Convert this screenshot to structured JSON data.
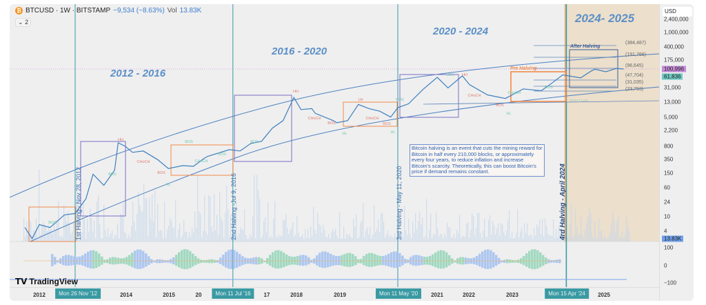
{
  "header": {
    "symbol": "BTCUSD · 1W · BITSTAMP",
    "change": "−9,534 (−8.63%)",
    "vol_label": "Vol",
    "vol_value": "13.83K",
    "indicator_count": "2",
    "coin_icon": "bitcoin-icon"
  },
  "colors": {
    "price_line": "#3d7fbf",
    "halving_line": "#3a9aa3",
    "era_text": "#5b8fc7",
    "purple_box": "#7b6fc4",
    "orange_box": "#f0894a",
    "highlight_zone": "#ecdfcc",
    "last_price_badge": "#c58ad8",
    "ma_badge": "#6fc7c0",
    "volume_badge": "#6f9fe8"
  },
  "chart_data": {
    "type": "line",
    "title": "",
    "yscale": "log",
    "ylim": [
      1.5,
      2400000
    ],
    "xlim": [
      "2011-08",
      "2025-12"
    ],
    "price_ticks": [
      "2,400,000",
      "1,000,000",
      "400,000",
      "175,000",
      "31,000",
      "13,000",
      "5,000",
      "2,200",
      "800",
      "350",
      "150",
      "60",
      "24",
      "10",
      "4"
    ],
    "price_tick_values": [
      2400000,
      1000000,
      400000,
      175000,
      31000,
      13000,
      5000,
      2200,
      800,
      350,
      150,
      60,
      24,
      10,
      4
    ],
    "x_ticks": [
      "2012",
      "2014",
      "2015",
      "20",
      "17",
      "2018",
      "2019",
      "2021",
      "2022",
      "2023",
      "2025"
    ],
    "series": [
      {
        "points": [
          [
            "2011-09",
            5
          ],
          [
            "2011-11",
            2.5
          ],
          [
            "2012-01",
            6
          ],
          [
            "2012-04",
            5
          ],
          [
            "2012-08",
            11
          ],
          [
            "2012-11",
            12
          ],
          [
            "2013-02",
            30
          ],
          [
            "2013-04",
            140
          ],
          [
            "2013-07",
            70
          ],
          [
            "2013-10",
            180
          ],
          [
            "2013-11",
            1000
          ],
          [
            "2014-01",
            800
          ],
          [
            "2014-03",
            550
          ],
          [
            "2014-06",
            600
          ],
          [
            "2014-10",
            350
          ],
          [
            "2015-01",
            200
          ],
          [
            "2015-05",
            240
          ],
          [
            "2015-08",
            230
          ],
          [
            "2015-11",
            380
          ],
          [
            "2015-12",
            430
          ],
          [
            "2016-06",
            650
          ],
          [
            "2016-09",
            600
          ],
          [
            "2016-12",
            960
          ],
          [
            "2017-03",
            1100
          ],
          [
            "2017-06",
            2500
          ],
          [
            "2017-09",
            4000
          ],
          [
            "2017-12",
            17000
          ],
          [
            "2018-02",
            8000
          ],
          [
            "2018-05",
            8500
          ],
          [
            "2018-06",
            6300
          ],
          [
            "2018-11",
            4000
          ],
          [
            "2018-12",
            3500
          ],
          [
            "2019-03",
            4000
          ],
          [
            "2019-06",
            11000
          ],
          [
            "2019-09",
            8500
          ],
          [
            "2019-12",
            7200
          ],
          [
            "2020-03",
            5000
          ],
          [
            "2020-05",
            9000
          ],
          [
            "2020-08",
            11500
          ],
          [
            "2020-12",
            28000
          ],
          [
            "2021-04",
            60000
          ],
          [
            "2021-07",
            31000
          ],
          [
            "2021-11",
            66000
          ],
          [
            "2022-01",
            38000
          ],
          [
            "2022-06",
            20000
          ],
          [
            "2022-11",
            16000
          ],
          [
            "2023-04",
            29000
          ],
          [
            "2023-09",
            26000
          ],
          [
            "2023-12",
            42000
          ],
          [
            "2024-03",
            70000
          ],
          [
            "2024-08",
            58000
          ],
          [
            "2024-11",
            90000
          ],
          [
            "2024-12",
            100000
          ],
          [
            "2025-03",
            85000
          ],
          [
            "2025-06",
            105000
          ],
          [
            "2025-08",
            100996
          ]
        ]
      }
    ],
    "last_price": "100,996",
    "ma_value": "61,836",
    "volume": "13.83K",
    "oscillator_ticks": [
      "100",
      "0",
      "−100"
    ],
    "levels": [
      "(384,487)",
      "(191,766)",
      "(96,645)",
      "(47,704)",
      "(31,035)",
      "(23,793)"
    ]
  },
  "eras": [
    "2012 - 2016",
    "2016 - 2020",
    "2020 - 2024",
    "2024- 2025"
  ],
  "halvings": [
    {
      "label": "1st Halving - Nov 28, 2012",
      "date_badge": "Mon 26 Nov '12"
    },
    {
      "label": "2nd Halving -Jul 9, 2016",
      "date_badge": "Mon 11 Jul '16"
    },
    {
      "label": "3rd Halving - May 11, 2020",
      "date_badge": "Mon 11 May '20"
    },
    {
      "label": "4rd Halving - April 2024",
      "date_badge": "Mon 15 Apr '24"
    }
  ],
  "note": "Bitcoin halving is an event that cuts the mining reward for Bitcoin in half every 210,000 blocks, or approximately every four years, to reduce inflation and increase Bitcoin's scarcity. Theoretically, this can boost Bitcoin's price if demand remains constant.",
  "box_labels": {
    "pre": "Pre Halving",
    "after": "After Halving"
  },
  "annotations": [
    "HH",
    "BOS",
    "BOS",
    "BOS",
    "CHoCH",
    "BOS",
    "HL",
    "CHoCH",
    "BOS",
    "BOS",
    "HH",
    "LH",
    "BOS",
    "CHoCH",
    "BOS",
    "HL",
    "CHoCH",
    "BOS",
    "HL",
    "BOS",
    "HH",
    "CHoCH",
    "BOS",
    "HL",
    "CHoCH",
    "BOS",
    "Strong Low"
  ],
  "logo": "TradingView",
  "axis_currency": "USD"
}
